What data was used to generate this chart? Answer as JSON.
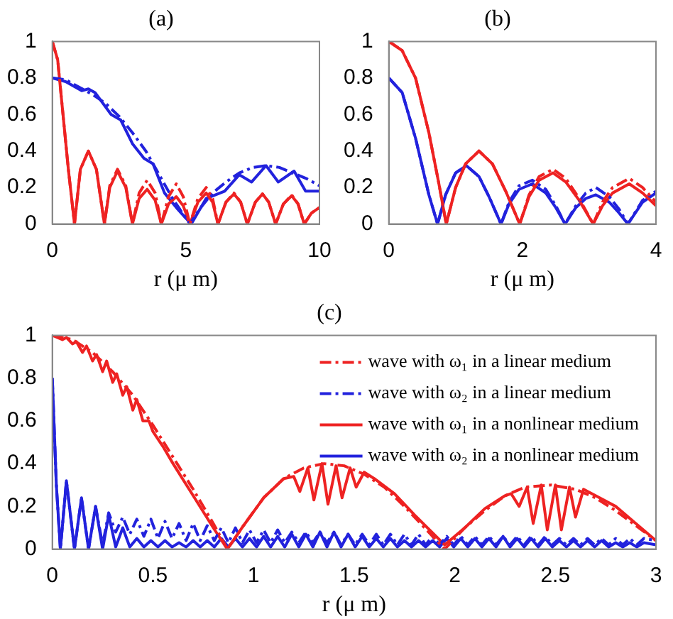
{
  "chart_data": [
    {
      "type": "line",
      "title": "(a)",
      "xlabel": "r (μ m)",
      "xlim": [
        0,
        10
      ],
      "xticks": [
        0,
        5,
        10
      ],
      "ylim": [
        0,
        1
      ],
      "yticks": [
        0,
        0.2,
        0.4,
        0.6,
        0.8,
        1
      ],
      "series": [
        {
          "color": "#ee2222",
          "line_style": "dashed",
          "x": [
            0,
            0.2,
            0.4,
            0.6,
            0.83,
            1.05,
            1.35,
            1.65,
            1.95,
            2.15,
            2.44,
            2.75,
            3.0,
            3.25,
            3.55,
            3.85,
            4.08,
            4.35,
            4.64,
            4.9,
            5.15,
            5.45,
            5.76,
            6.0,
            6.2,
            6.5,
            6.8,
            7.05,
            7.3,
            7.6,
            7.87,
            8.1,
            8.36,
            8.65,
            8.96,
            9.2,
            9.43,
            9.7,
            10
          ],
          "values": [
            1,
            0.9,
            0.6,
            0.3,
            0,
            0.3,
            0.4,
            0.3,
            0,
            0.21,
            0.3,
            0.21,
            0,
            0.17,
            0.24,
            0.17,
            0,
            0.15,
            0.22,
            0.15,
            0,
            0.14,
            0.2,
            0.14,
            0,
            0.12,
            0.17,
            0.12,
            0,
            0.12,
            0.165,
            0.12,
            0,
            0.11,
            0.16,
            0.11,
            0,
            0.06,
            0.09
          ]
        },
        {
          "color": "#2222dd",
          "line_style": "dashed",
          "x": [
            0,
            0.5,
            1.0,
            1.5,
            2.0,
            2.5,
            3.0,
            3.5,
            4.0,
            4.5,
            5.15,
            5.5,
            6.0,
            6.5,
            7.0,
            7.5,
            8.0,
            8.5,
            9.0,
            9.5,
            10
          ],
          "values": [
            0.8,
            0.79,
            0.75,
            0.71,
            0.66,
            0.59,
            0.5,
            0.4,
            0.27,
            0.14,
            0,
            0.08,
            0.17,
            0.23,
            0.28,
            0.31,
            0.32,
            0.31,
            0.28,
            0.25,
            0.21
          ]
        },
        {
          "color": "#ee2222",
          "line_style": "solid",
          "x": [
            0,
            0.2,
            0.4,
            0.6,
            0.83,
            1.05,
            1.35,
            1.65,
            1.95,
            2.15,
            2.44,
            2.75,
            3.0,
            3.25,
            3.55,
            3.85,
            4.08,
            4.35,
            4.64,
            4.9,
            5.15,
            5.45,
            5.76,
            6.0,
            6.2,
            6.5,
            6.8,
            7.05,
            7.3,
            7.6,
            7.87,
            8.1,
            8.36,
            8.65,
            8.96,
            9.2,
            9.43,
            9.7,
            10
          ],
          "values": [
            1,
            0.9,
            0.6,
            0.3,
            0,
            0.3,
            0.4,
            0.3,
            0,
            0.2,
            0.29,
            0.2,
            0,
            0.14,
            0.19,
            0.13,
            0,
            0.11,
            0.15,
            0.1,
            0,
            0.12,
            0.17,
            0.12,
            0,
            0.12,
            0.165,
            0.12,
            0,
            0.12,
            0.165,
            0.12,
            0,
            0.11,
            0.155,
            0.11,
            0,
            0.06,
            0.09
          ]
        },
        {
          "color": "#2222dd",
          "line_style": "solid",
          "x": [
            0,
            0.5,
            1.1,
            1.35,
            1.6,
            2.2,
            2.56,
            3.0,
            3.43,
            3.77,
            4.2,
            4.7,
            5.2,
            5.76,
            6.45,
            7.0,
            7.46,
            8.0,
            8.46,
            9.05,
            9.48,
            10
          ],
          "values": [
            0.8,
            0.78,
            0.73,
            0.74,
            0.72,
            0.6,
            0.57,
            0.44,
            0.36,
            0.33,
            0.17,
            0.08,
            0,
            0.14,
            0.18,
            0.27,
            0.23,
            0.32,
            0.23,
            0.29,
            0.18,
            0.18
          ]
        }
      ]
    },
    {
      "type": "line",
      "title": "(b)",
      "xlabel": "r (μ m)",
      "xlim": [
        0,
        4
      ],
      "xticks": [
        0,
        2,
        4
      ],
      "ylim": [
        0,
        1
      ],
      "yticks": [
        0,
        0.2,
        0.4,
        0.6,
        0.8,
        1
      ],
      "series": [
        {
          "color": "#ee2222",
          "line_style": "dashed",
          "x": [
            0,
            0.2,
            0.4,
            0.6,
            0.75,
            0.86,
            1.0,
            1.15,
            1.35,
            1.55,
            1.75,
            1.96,
            2.1,
            2.25,
            2.46,
            2.65,
            2.85,
            3.06,
            3.2,
            3.35,
            3.6,
            3.8,
            4
          ],
          "values": [
            1,
            0.95,
            0.8,
            0.5,
            0.22,
            0,
            0.2,
            0.33,
            0.4,
            0.33,
            0.18,
            0,
            0.16,
            0.26,
            0.3,
            0.25,
            0.14,
            0,
            0.12,
            0.2,
            0.25,
            0.2,
            0.12
          ]
        },
        {
          "color": "#2222dd",
          "line_style": "dashed",
          "x": [
            0,
            0.2,
            0.4,
            0.6,
            0.73,
            0.85,
            1.0,
            1.16,
            1.35,
            1.5,
            1.68,
            1.8,
            1.95,
            2.15,
            2.35,
            2.5,
            2.64,
            2.8,
            2.95,
            3.1,
            3.3,
            3.45,
            3.58,
            3.8,
            4
          ],
          "values": [
            0.8,
            0.72,
            0.47,
            0.16,
            0,
            0.16,
            0.28,
            0.32,
            0.26,
            0.15,
            0,
            0.12,
            0.21,
            0.24,
            0.19,
            0.1,
            0,
            0.1,
            0.17,
            0.2,
            0.15,
            0.08,
            0,
            0.13,
            0.18
          ]
        },
        {
          "color": "#ee2222",
          "line_style": "solid",
          "x": [
            0,
            0.2,
            0.4,
            0.6,
            0.75,
            0.86,
            1.0,
            1.15,
            1.35,
            1.55,
            1.75,
            1.96,
            2.1,
            2.25,
            2.46,
            2.65,
            2.85,
            3.06,
            3.2,
            3.35,
            3.6,
            3.8,
            4
          ],
          "values": [
            1,
            0.95,
            0.8,
            0.5,
            0.22,
            0,
            0.2,
            0.33,
            0.4,
            0.33,
            0.18,
            0,
            0.15,
            0.24,
            0.28,
            0.23,
            0.13,
            0,
            0.1,
            0.17,
            0.22,
            0.17,
            0.1
          ]
        },
        {
          "color": "#2222dd",
          "line_style": "solid",
          "x": [
            0,
            0.2,
            0.4,
            0.6,
            0.73,
            0.85,
            1.0,
            1.16,
            1.35,
            1.5,
            1.68,
            1.8,
            1.95,
            2.15,
            2.35,
            2.5,
            2.64,
            2.8,
            2.95,
            3.1,
            3.3,
            3.45,
            3.58,
            3.8,
            4
          ],
          "values": [
            0.8,
            0.72,
            0.47,
            0.16,
            0,
            0.16,
            0.28,
            0.32,
            0.26,
            0.15,
            0,
            0.11,
            0.19,
            0.22,
            0.17,
            0.09,
            0,
            0.09,
            0.14,
            0.16,
            0.12,
            0.06,
            0,
            0.12,
            0.17
          ]
        }
      ]
    },
    {
      "type": "line",
      "title": "(c)",
      "xlabel": "r (μ m)",
      "xlim": [
        0,
        3
      ],
      "xticks": [
        0,
        0.5,
        1,
        1.5,
        2,
        2.5,
        3
      ],
      "ylim": [
        0,
        1
      ],
      "yticks": [
        0,
        0.2,
        0.4,
        0.6,
        0.8,
        1
      ],
      "legend": "top right",
      "series": [
        {
          "name": "wave with ω₁ in a linear medium",
          "color": "#ee2222",
          "line_style": "dashed",
          "x": [
            0,
            0.1,
            0.2,
            0.3,
            0.4,
            0.5,
            0.6,
            0.7,
            0.8,
            0.87,
            0.95,
            1.05,
            1.15,
            1.25,
            1.35,
            1.45,
            1.55,
            1.65,
            1.75,
            1.85,
            1.95,
            2.05,
            2.15,
            2.25,
            2.35,
            2.48,
            2.6,
            2.7,
            2.8,
            2.9,
            3
          ],
          "values": [
            1,
            0.98,
            0.92,
            0.83,
            0.72,
            0.58,
            0.43,
            0.28,
            0.12,
            0,
            0.11,
            0.24,
            0.33,
            0.38,
            0.4,
            0.39,
            0.35,
            0.29,
            0.2,
            0.1,
            0,
            0.1,
            0.18,
            0.25,
            0.29,
            0.3,
            0.28,
            0.24,
            0.18,
            0.11,
            0.04
          ]
        },
        {
          "name": "wave with ω₂ in a linear medium",
          "color": "#2222dd",
          "line_style": "dashed",
          "x": [
            0,
            0.02,
            0.04,
            0.07,
            0.11,
            0.145,
            0.18,
            0.215,
            0.25,
            0.28,
            0.315,
            0.35,
            0.385,
            0.42,
            0.455,
            0.49,
            0.525,
            0.56,
            0.595,
            0.63,
            0.665,
            0.7,
            0.735,
            0.77,
            0.805,
            0.84,
            0.875,
            0.91,
            0.945,
            0.98,
            1.015,
            1.05,
            1.085,
            1.12,
            1.155,
            1.19,
            1.225,
            1.26,
            1.295,
            1.33,
            1.365,
            1.4,
            1.435,
            1.47,
            1.505,
            1.54,
            1.575,
            1.61,
            1.645,
            1.68,
            1.715,
            1.75,
            1.785,
            1.82,
            1.855,
            1.89,
            1.925,
            1.96,
            1.995,
            2.03,
            2.065,
            2.1,
            2.135,
            2.17,
            2.205,
            2.24,
            2.275,
            2.31,
            2.345,
            2.38,
            2.415,
            2.45,
            2.485,
            2.52,
            2.555,
            2.59,
            2.625,
            2.66,
            2.695,
            2.73,
            2.765,
            2.8,
            2.835,
            2.87,
            2.905,
            2.94,
            3
          ],
          "values": [
            0.8,
            0.3,
            0,
            0.32,
            0,
            0.24,
            0,
            0.2,
            0.02,
            0.17,
            0.08,
            0.15,
            0.07,
            0.14,
            0.06,
            0.14,
            0.05,
            0.13,
            0.05,
            0.12,
            0.04,
            0.12,
            0.04,
            0.11,
            0.04,
            0.1,
            0.03,
            0.1,
            0.03,
            0.09,
            0.03,
            0.09,
            0.03,
            0.09,
            0.03,
            0.08,
            0.03,
            0.08,
            0.03,
            0.08,
            0.03,
            0.08,
            0.02,
            0.07,
            0.02,
            0.07,
            0.02,
            0.07,
            0.02,
            0.07,
            0.02,
            0.07,
            0.02,
            0.07,
            0.02,
            0.06,
            0.02,
            0.06,
            0.02,
            0.06,
            0.02,
            0.06,
            0.02,
            0.06,
            0.02,
            0.06,
            0.02,
            0.06,
            0.02,
            0.06,
            0.02,
            0.06,
            0.02,
            0.05,
            0.02,
            0.05,
            0.02,
            0.05,
            0.02,
            0.05,
            0.02,
            0.05,
            0.02,
            0.05,
            0.02,
            0.05,
            0.04
          ]
        },
        {
          "name": "wave with ω₁ in a nonlinear medium",
          "color": "#ee2222",
          "line_style": "solid",
          "x": [
            0,
            0.05,
            0.07,
            0.1,
            0.12,
            0.15,
            0.17,
            0.2,
            0.22,
            0.25,
            0.27,
            0.3,
            0.32,
            0.35,
            0.37,
            0.4,
            0.42,
            0.45,
            0.48,
            0.5,
            0.55,
            0.6,
            0.7,
            0.8,
            0.87,
            0.95,
            1.05,
            1.15,
            1.2,
            1.23,
            1.27,
            1.3,
            1.34,
            1.37,
            1.41,
            1.44,
            1.48,
            1.51,
            1.55,
            1.6,
            1.7,
            1.8,
            1.95,
            2.05,
            2.15,
            2.25,
            2.28,
            2.32,
            2.36,
            2.39,
            2.43,
            2.46,
            2.5,
            2.53,
            2.57,
            2.6,
            2.64,
            2.7,
            2.8,
            2.9,
            3
          ],
          "values": [
            1,
            0.98,
            0.99,
            0.96,
            0.97,
            0.92,
            0.95,
            0.88,
            0.91,
            0.83,
            0.88,
            0.78,
            0.82,
            0.72,
            0.76,
            0.65,
            0.7,
            0.6,
            0.6,
            0.55,
            0.48,
            0.4,
            0.25,
            0.1,
            0,
            0.11,
            0.24,
            0.33,
            0.34,
            0.27,
            0.38,
            0.23,
            0.4,
            0.21,
            0.39,
            0.24,
            0.38,
            0.29,
            0.36,
            0.33,
            0.26,
            0.16,
            0.02,
            0.1,
            0.19,
            0.25,
            0.26,
            0.2,
            0.29,
            0.12,
            0.3,
            0.09,
            0.3,
            0.09,
            0.29,
            0.15,
            0.28,
            0.25,
            0.2,
            0.12,
            0.04
          ]
        },
        {
          "name": "wave with ω₂ in a nonlinear medium",
          "color": "#2222dd",
          "line_style": "solid",
          "x": [
            0,
            0.02,
            0.04,
            0.07,
            0.11,
            0.145,
            0.18,
            0.215,
            0.25,
            0.28,
            0.315,
            0.35,
            0.385,
            0.42,
            0.455,
            0.49,
            0.525,
            0.56,
            0.595,
            0.63,
            0.665,
            0.7,
            0.735,
            0.77,
            0.805,
            0.84,
            0.875,
            0.91,
            0.945,
            0.98,
            1.015,
            1.05,
            1.085,
            1.12,
            1.155,
            1.19,
            1.225,
            1.26,
            1.295,
            1.33,
            1.365,
            1.4,
            1.435,
            1.47,
            1.505,
            1.54,
            1.575,
            1.61,
            1.645,
            1.68,
            1.715,
            1.75,
            1.785,
            1.82,
            1.855,
            1.89,
            1.925,
            1.96,
            1.995,
            2.03,
            2.065,
            2.1,
            2.135,
            2.17,
            2.205,
            2.24,
            2.275,
            2.31,
            2.345,
            2.38,
            2.415,
            2.45,
            2.485,
            2.52,
            2.555,
            2.59,
            2.625,
            2.66,
            2.695,
            2.73,
            2.765,
            2.8,
            2.835,
            2.87,
            2.905,
            2.94,
            3
          ],
          "values": [
            0.8,
            0.3,
            0,
            0.32,
            0,
            0.24,
            0,
            0.2,
            0,
            0.16,
            0.01,
            0.1,
            0.01,
            0.05,
            0.01,
            0.04,
            0.01,
            0.04,
            0.01,
            0.03,
            0.01,
            0.04,
            0.01,
            0.04,
            0.01,
            0.05,
            0.01,
            0.05,
            0.01,
            0.05,
            0.01,
            0.06,
            0.01,
            0.06,
            0.01,
            0.07,
            0.01,
            0.07,
            0.01,
            0.08,
            0.01,
            0.08,
            0.01,
            0.07,
            0.01,
            0.06,
            0.01,
            0.05,
            0.01,
            0.05,
            0.01,
            0.04,
            0.01,
            0.04,
            0.01,
            0.04,
            0.01,
            0.05,
            0.01,
            0.05,
            0.01,
            0.05,
            0.01,
            0.05,
            0.01,
            0.06,
            0.01,
            0.05,
            0.01,
            0.05,
            0.01,
            0.05,
            0.01,
            0.04,
            0.01,
            0.04,
            0.01,
            0.04,
            0.01,
            0.04,
            0.01,
            0.03,
            0.01,
            0.03,
            0.01,
            0.03,
            0.02
          ]
        }
      ]
    }
  ]
}
